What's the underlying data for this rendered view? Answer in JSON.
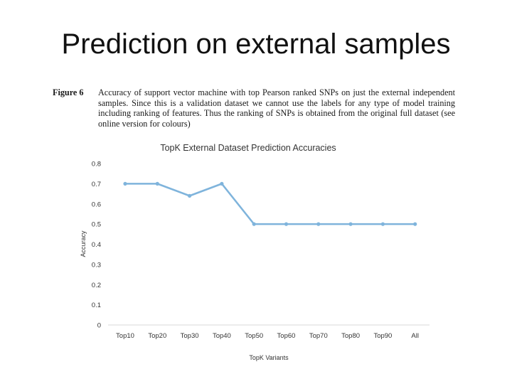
{
  "slide": {
    "title": "Prediction on external samples"
  },
  "caption": {
    "label": "Figure 6",
    "text": "Accuracy of support vector machine with top Pearson ranked SNPs on just the external independent samples. Since this is a validation dataset we cannot use the labels for any type of model training including ranking of features. Thus the ranking of SNPs is obtained from the original full dataset (see online version for colours)"
  },
  "chart_data": {
    "type": "line",
    "title": "TopK External Dataset Prediction Accuracies",
    "xlabel": "TopK Variants",
    "ylabel": "Accuracy",
    "categories": [
      "Top10",
      "Top20",
      "Top30",
      "Top40",
      "Top50",
      "Top60",
      "Top70",
      "Top80",
      "Top90",
      "All"
    ],
    "series": [
      {
        "name": "Accuracy",
        "values": [
          0.7,
          0.7,
          0.64,
          0.7,
          0.5,
          0.5,
          0.5,
          0.5,
          0.5,
          0.5
        ]
      }
    ],
    "ylim": [
      0,
      0.8
    ],
    "yticks": [
      0,
      0.1,
      0.2,
      0.3,
      0.4,
      0.5,
      0.6,
      0.7,
      0.8
    ],
    "grid": false,
    "color": "#7fb4dc"
  }
}
